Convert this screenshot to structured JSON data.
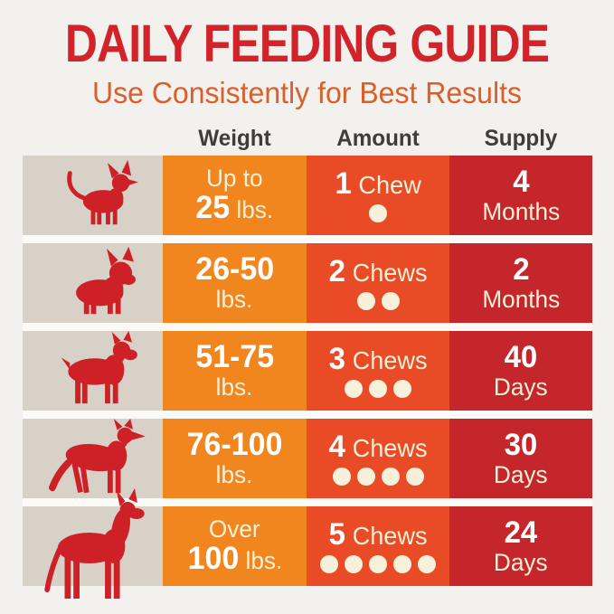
{
  "header": {
    "title": "DAILY FEEDING GUIDE",
    "subtitle": "Use Consistently for Best Results",
    "title_color": "#D2232A",
    "subtitle_color": "#D95F2B"
  },
  "table": {
    "columns": [
      "Weight",
      "Amount",
      "Supply"
    ],
    "colors": {
      "background": "#F2F1ED",
      "dog_cell": "#D8D1C7",
      "weight_cell": "#F1861F",
      "amount_cell": "#E94B26",
      "supply_cell": "#C5262B",
      "dog_red": "#CE2127",
      "number_text": "#FFFFFF",
      "cream_text": "#F8EFD7",
      "dot": "#F7F1DB",
      "row_gap": "#FBFAF7",
      "header_text": "#3E3D3C"
    },
    "rows": [
      {
        "dog_icon": "chihuahua-icon",
        "weight": {
          "prefix": "Up to",
          "value": "25",
          "unit": "lbs."
        },
        "amount": {
          "count": "1",
          "word": "Chew",
          "dots": 1
        },
        "supply": {
          "value": "4",
          "unit": "Months"
        }
      },
      {
        "dog_icon": "french-bulldog-icon",
        "weight": {
          "prefix": "",
          "value": "26-50",
          "unit": "lbs."
        },
        "amount": {
          "count": "2",
          "word": "Chews",
          "dots": 2
        },
        "supply": {
          "value": "2",
          "unit": "Months"
        }
      },
      {
        "dog_icon": "boxer-icon",
        "weight": {
          "prefix": "",
          "value": "51-75",
          "unit": "lbs."
        },
        "amount": {
          "count": "3",
          "word": "Chews",
          "dots": 3
        },
        "supply": {
          "value": "40",
          "unit": "Days"
        }
      },
      {
        "dog_icon": "german-shepherd-icon",
        "weight": {
          "prefix": "",
          "value": "76-100",
          "unit": "lbs."
        },
        "amount": {
          "count": "4",
          "word": "Chews",
          "dots": 4
        },
        "supply": {
          "value": "30",
          "unit": "Days"
        }
      },
      {
        "dog_icon": "great-dane-icon",
        "weight": {
          "prefix": "Over",
          "value": "100",
          "unit": "lbs."
        },
        "amount": {
          "count": "5",
          "word": "Chews",
          "dots": 5
        },
        "supply": {
          "value": "24",
          "unit": "Days"
        }
      }
    ]
  }
}
